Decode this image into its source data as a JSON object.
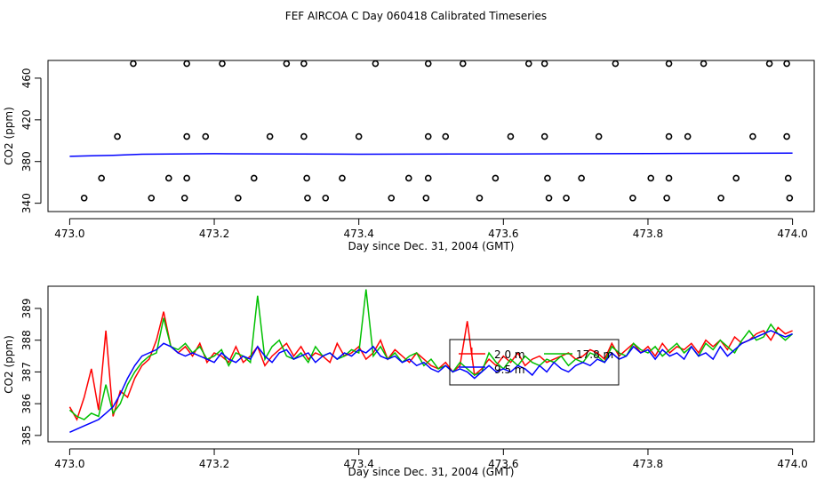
{
  "figure": {
    "title": "FEF AIRCOA C  Day 060418  Calibrated Timeseries"
  },
  "chart_data": [
    {
      "type": "scatter",
      "xlabel": "Day since Dec. 31, 2004 (GMT)",
      "ylabel": "CO2 (ppm)",
      "xlim": [
        472.97,
        474.03
      ],
      "ylim": [
        332,
        477
      ],
      "xticks": [
        473.0,
        473.2,
        473.4,
        473.6,
        473.8,
        474.0
      ],
      "xtick_labels": [
        "473.0",
        "473.2",
        "473.4",
        "473.6",
        "473.8",
        "474.0"
      ],
      "yticks": [
        340,
        380,
        420,
        460
      ],
      "ytick_labels": [
        "340",
        "380",
        "420",
        "460"
      ],
      "grid": false,
      "series": [
        {
          "kind": "line",
          "color": "#0000ff",
          "x": [
            473.0,
            473.03,
            473.06,
            473.1,
            473.2,
            473.4,
            473.6,
            473.8,
            474.0
          ],
          "y": [
            385,
            385.5,
            386,
            387,
            387.5,
            387,
            387.3,
            387.7,
            388
          ]
        },
        {
          "kind": "markers",
          "marker": "open-circle",
          "color": "#000000",
          "points": [
            [
              473.088,
              474
            ],
            [
              473.162,
              474
            ],
            [
              473.211,
              474
            ],
            [
              473.3,
              474
            ],
            [
              473.324,
              474
            ],
            [
              473.423,
              474
            ],
            [
              473.496,
              474
            ],
            [
              473.544,
              474
            ],
            [
              473.635,
              474
            ],
            [
              473.657,
              474
            ],
            [
              473.755,
              474
            ],
            [
              473.829,
              474
            ],
            [
              473.877,
              474
            ],
            [
              473.968,
              474
            ],
            [
              473.992,
              474
            ],
            [
              473.066,
              404
            ],
            [
              473.162,
              404
            ],
            [
              473.188,
              404
            ],
            [
              473.277,
              404
            ],
            [
              473.324,
              404
            ],
            [
              473.4,
              404
            ],
            [
              473.496,
              404
            ],
            [
              473.52,
              404
            ],
            [
              473.61,
              404
            ],
            [
              473.657,
              404
            ],
            [
              473.732,
              404
            ],
            [
              473.829,
              404
            ],
            [
              473.855,
              404
            ],
            [
              473.945,
              404
            ],
            [
              473.992,
              404
            ],
            [
              473.044,
              364
            ],
            [
              473.137,
              364
            ],
            [
              473.162,
              364
            ],
            [
              473.255,
              364
            ],
            [
              473.328,
              364
            ],
            [
              473.377,
              364
            ],
            [
              473.469,
              364
            ],
            [
              473.496,
              364
            ],
            [
              473.589,
              364
            ],
            [
              473.661,
              364
            ],
            [
              473.708,
              364
            ],
            [
              473.804,
              364
            ],
            [
              473.829,
              364
            ],
            [
              473.922,
              364
            ],
            [
              473.994,
              364
            ],
            [
              473.02,
              345
            ],
            [
              473.113,
              345
            ],
            [
              473.159,
              345
            ],
            [
              473.233,
              345
            ],
            [
              473.329,
              345
            ],
            [
              473.354,
              345
            ],
            [
              473.445,
              345
            ],
            [
              473.493,
              345
            ],
            [
              473.567,
              345
            ],
            [
              473.663,
              345
            ],
            [
              473.687,
              345
            ],
            [
              473.779,
              345
            ],
            [
              473.826,
              345
            ],
            [
              473.901,
              345
            ],
            [
              473.996,
              345
            ]
          ]
        }
      ]
    },
    {
      "type": "line",
      "xlabel": "Day since Dec. 31, 2004 (GMT)",
      "ylabel": "CO2 (ppm)",
      "xlim": [
        472.97,
        474.03
      ],
      "ylim": [
        384.8,
        389.7
      ],
      "xticks": [
        473.0,
        473.2,
        473.4,
        473.6,
        473.8,
        474.0
      ],
      "xtick_labels": [
        "473.0",
        "473.2",
        "473.4",
        "473.6",
        "473.8",
        "474.0"
      ],
      "yticks": [
        385,
        386,
        387,
        388,
        389
      ],
      "ytick_labels": [
        "385",
        "386",
        "387",
        "388",
        "389"
      ],
      "grid": false,
      "legend": {
        "position": "center",
        "entries": [
          {
            "label": "2.0 m",
            "color": "#ff0000"
          },
          {
            "label": "17.8 m",
            "color": "#00c000"
          },
          {
            "label": "9.5 m",
            "color": "#0000ff"
          }
        ]
      },
      "series": [
        {
          "name": "2.0 m",
          "color": "#ff0000",
          "x": [
            473.0,
            473.01,
            473.02,
            473.03,
            473.04,
            473.05,
            473.06,
            473.07,
            473.08,
            473.09,
            473.1,
            473.11,
            473.12,
            473.13,
            473.14,
            473.15,
            473.16,
            473.17,
            473.18,
            473.19,
            473.2,
            473.21,
            473.22,
            473.23,
            473.24,
            473.25,
            473.26,
            473.27,
            473.28,
            473.29,
            473.3,
            473.31,
            473.32,
            473.33,
            473.34,
            473.35,
            473.36,
            473.37,
            473.38,
            473.39,
            473.4,
            473.41,
            473.42,
            473.43,
            473.44,
            473.45,
            473.46,
            473.47,
            473.48,
            473.49,
            473.5,
            473.51,
            473.52,
            473.53,
            473.54,
            473.55,
            473.56,
            473.57,
            473.58,
            473.59,
            473.6,
            473.61,
            473.62,
            473.63,
            473.64,
            473.65,
            473.66,
            473.67,
            473.68,
            473.69,
            473.7,
            473.71,
            473.72,
            473.73,
            473.74,
            473.75,
            473.76,
            473.77,
            473.78,
            473.79,
            473.8,
            473.81,
            473.82,
            473.83,
            473.84,
            473.85,
            473.86,
            473.87,
            473.88,
            473.89,
            473.9,
            473.91,
            473.92,
            473.93,
            473.94,
            473.95,
            473.96,
            473.97,
            473.98,
            473.99,
            474.0
          ],
          "y": [
            385.9,
            385.5,
            386.2,
            387.1,
            385.8,
            388.3,
            385.6,
            386.4,
            386.2,
            386.8,
            387.2,
            387.4,
            388.0,
            388.9,
            387.8,
            387.6,
            387.8,
            387.5,
            387.9,
            387.3,
            387.6,
            387.5,
            387.3,
            387.8,
            387.3,
            387.5,
            387.8,
            387.2,
            387.5,
            387.7,
            387.9,
            387.5,
            387.8,
            387.4,
            387.6,
            387.5,
            387.3,
            387.9,
            387.5,
            387.6,
            387.8,
            387.4,
            387.6,
            388.0,
            387.4,
            387.7,
            387.5,
            387.3,
            387.6,
            387.4,
            387.2,
            387.1,
            387.3,
            387.0,
            387.2,
            388.6,
            386.9,
            387.1,
            387.4,
            387.2,
            387.5,
            387.3,
            387.6,
            387.2,
            387.4,
            387.5,
            387.3,
            387.4,
            387.5,
            387.6,
            387.4,
            387.5,
            387.7,
            387.6,
            387.4,
            387.9,
            387.5,
            387.7,
            387.9,
            387.6,
            387.8,
            387.5,
            387.9,
            387.6,
            387.8,
            387.7,
            387.9,
            387.6,
            388.0,
            387.8,
            388.0,
            387.7,
            388.1,
            387.9,
            388.0,
            388.2,
            388.3,
            388.0,
            388.4,
            388.2,
            388.3
          ]
        },
        {
          "name": "17.8 m",
          "color": "#00c000",
          "x": [
            473.0,
            473.01,
            473.02,
            473.03,
            473.04,
            473.05,
            473.06,
            473.07,
            473.08,
            473.09,
            473.1,
            473.11,
            473.12,
            473.13,
            473.14,
            473.15,
            473.16,
            473.17,
            473.18,
            473.19,
            473.2,
            473.21,
            473.22,
            473.23,
            473.24,
            473.25,
            473.26,
            473.27,
            473.28,
            473.29,
            473.3,
            473.31,
            473.32,
            473.33,
            473.34,
            473.35,
            473.36,
            473.37,
            473.38,
            473.39,
            473.4,
            473.41,
            473.42,
            473.43,
            473.44,
            473.45,
            473.46,
            473.47,
            473.48,
            473.49,
            473.5,
            473.51,
            473.52,
            473.53,
            473.54,
            473.55,
            473.56,
            473.57,
            473.58,
            473.59,
            473.6,
            473.61,
            473.62,
            473.63,
            473.64,
            473.65,
            473.66,
            473.67,
            473.68,
            473.69,
            473.7,
            473.71,
            473.72,
            473.73,
            473.74,
            473.75,
            473.76,
            473.77,
            473.78,
            473.79,
            473.8,
            473.81,
            473.82,
            473.83,
            473.84,
            473.85,
            473.86,
            473.87,
            473.88,
            473.89,
            473.9,
            473.91,
            473.92,
            473.93,
            473.94,
            473.95,
            473.96,
            473.97,
            473.98,
            473.99,
            474.0
          ],
          "y": [
            385.8,
            385.6,
            385.5,
            385.7,
            385.6,
            386.6,
            385.7,
            386.0,
            386.6,
            387.0,
            387.3,
            387.5,
            387.6,
            388.7,
            387.8,
            387.7,
            387.9,
            387.6,
            387.8,
            387.4,
            387.5,
            387.7,
            387.2,
            387.6,
            387.5,
            387.3,
            389.4,
            387.4,
            387.8,
            388.0,
            387.5,
            387.4,
            387.6,
            387.3,
            387.8,
            387.5,
            387.6,
            387.4,
            387.5,
            387.7,
            387.6,
            389.6,
            387.5,
            387.8,
            387.4,
            387.6,
            387.3,
            387.5,
            387.6,
            387.2,
            387.4,
            387.1,
            387.2,
            387.0,
            387.3,
            387.1,
            386.9,
            387.0,
            387.6,
            387.3,
            387.1,
            387.4,
            387.2,
            387.5,
            387.3,
            387.2,
            387.4,
            387.3,
            387.5,
            387.2,
            387.4,
            387.3,
            387.6,
            387.5,
            387.3,
            387.8,
            387.6,
            387.5,
            387.9,
            387.7,
            387.6,
            387.8,
            387.5,
            387.7,
            387.9,
            387.6,
            387.8,
            387.5,
            387.9,
            387.7,
            388.0,
            387.8,
            387.6,
            388.0,
            388.3,
            388.0,
            388.1,
            388.5,
            388.2,
            388.0,
            388.2
          ]
        },
        {
          "name": "9.5 m",
          "color": "#0000ff",
          "x": [
            473.0,
            473.01,
            473.02,
            473.03,
            473.04,
            473.05,
            473.06,
            473.07,
            473.08,
            473.09,
            473.1,
            473.11,
            473.12,
            473.13,
            473.14,
            473.15,
            473.16,
            473.17,
            473.18,
            473.19,
            473.2,
            473.21,
            473.22,
            473.23,
            473.24,
            473.25,
            473.26,
            473.27,
            473.28,
            473.29,
            473.3,
            473.31,
            473.32,
            473.33,
            473.34,
            473.35,
            473.36,
            473.37,
            473.38,
            473.39,
            473.4,
            473.41,
            473.42,
            473.43,
            473.44,
            473.45,
            473.46,
            473.47,
            473.48,
            473.49,
            473.5,
            473.51,
            473.52,
            473.53,
            473.54,
            473.55,
            473.56,
            473.57,
            473.58,
            473.59,
            473.6,
            473.61,
            473.62,
            473.63,
            473.64,
            473.65,
            473.66,
            473.67,
            473.68,
            473.69,
            473.7,
            473.71,
            473.72,
            473.73,
            473.74,
            473.75,
            473.76,
            473.77,
            473.78,
            473.79,
            473.8,
            473.81,
            473.82,
            473.83,
            473.84,
            473.85,
            473.86,
            473.87,
            473.88,
            473.89,
            473.9,
            473.91,
            473.92,
            473.93,
            473.94,
            473.95,
            473.96,
            473.97,
            473.98,
            473.99,
            474.0
          ],
          "y": [
            385.1,
            385.2,
            385.3,
            385.4,
            385.5,
            385.7,
            385.9,
            386.3,
            386.8,
            387.2,
            387.5,
            387.6,
            387.7,
            387.9,
            387.8,
            387.6,
            387.5,
            387.6,
            387.5,
            387.4,
            387.3,
            387.6,
            387.4,
            387.3,
            387.5,
            387.4,
            387.8,
            387.5,
            387.3,
            387.6,
            387.7,
            387.4,
            387.5,
            387.6,
            387.3,
            387.5,
            387.6,
            387.4,
            387.6,
            387.5,
            387.7,
            387.6,
            387.8,
            387.5,
            387.4,
            387.5,
            387.3,
            387.4,
            387.2,
            387.3,
            387.1,
            387.0,
            387.2,
            387.0,
            387.1,
            387.0,
            386.8,
            387.0,
            387.2,
            387.0,
            387.1,
            387.0,
            387.2,
            387.1,
            386.9,
            387.2,
            387.0,
            387.3,
            387.1,
            387.0,
            387.2,
            387.3,
            387.2,
            387.4,
            387.3,
            387.6,
            387.4,
            387.5,
            387.8,
            387.6,
            387.7,
            387.4,
            387.7,
            387.5,
            387.6,
            387.4,
            387.8,
            387.5,
            387.6,
            387.4,
            387.8,
            387.5,
            387.7,
            387.9,
            388.0,
            388.1,
            388.2,
            388.3,
            388.2,
            388.1,
            388.2
          ]
        }
      ]
    }
  ]
}
